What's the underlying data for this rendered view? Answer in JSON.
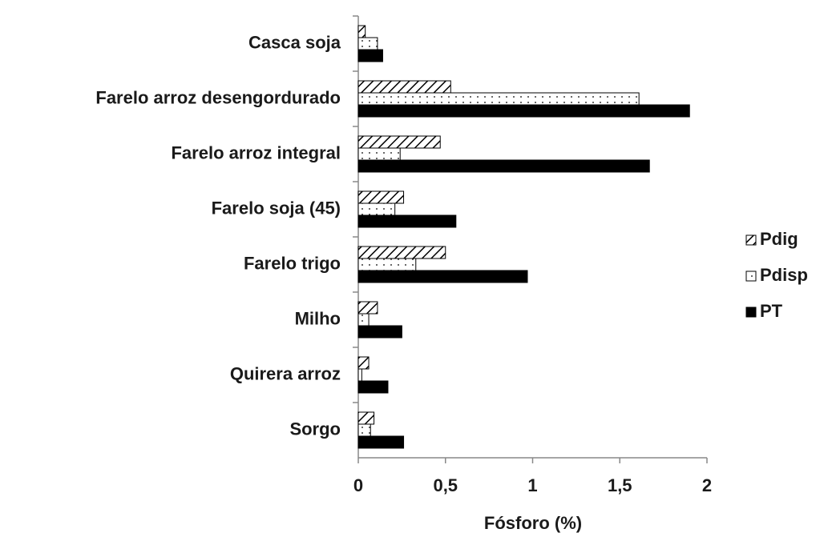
{
  "chart_data": {
    "type": "barh",
    "categories": [
      "Casca soja",
      "Farelo arroz desengordurado",
      "Farelo arroz integral",
      "Farelo soja (45)",
      "Farelo trigo",
      "Milho",
      "Quirera arroz",
      "Sorgo"
    ],
    "series": [
      {
        "name": "Pdig",
        "color": "#000000",
        "pattern": "hatch",
        "values": [
          0.04,
          0.53,
          0.47,
          0.26,
          0.5,
          0.11,
          0.06,
          0.09
        ]
      },
      {
        "name": "Pdisp",
        "color": "#000000",
        "pattern": "dots",
        "values": [
          0.11,
          1.61,
          0.24,
          0.21,
          0.33,
          0.06,
          0.02,
          0.07
        ]
      },
      {
        "name": "PT",
        "color": "#000000",
        "pattern": "solid",
        "values": [
          0.14,
          1.9,
          1.67,
          0.56,
          0.97,
          0.25,
          0.17,
          0.26
        ]
      }
    ],
    "xlabel": "Fósforo (%)",
    "xlim": [
      0,
      2
    ],
    "xticks": [
      0,
      {
        "value": 0.5,
        "label": "0,5"
      },
      1,
      {
        "value": 1.5,
        "label": "1,5"
      },
      2
    ],
    "grid": false,
    "legend": "right"
  }
}
